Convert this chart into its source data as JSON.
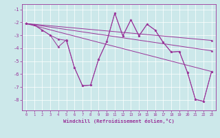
{
  "xlabel": "Windchill (Refroidissement éolien,°C)",
  "background_color": "#cce8ea",
  "line_color": "#993399",
  "xlim": [
    -0.5,
    23.5
  ],
  "ylim": [
    -8.8,
    -0.6
  ],
  "yticks": [
    -8,
    -7,
    -6,
    -5,
    -4,
    -3,
    -2,
    -1
  ],
  "xticks": [
    0,
    1,
    2,
    3,
    4,
    5,
    6,
    7,
    8,
    9,
    10,
    11,
    12,
    13,
    14,
    15,
    16,
    17,
    18,
    19,
    20,
    21,
    22,
    23
  ],
  "curves": [
    {
      "x": [
        0,
        1,
        2,
        3,
        4,
        5,
        6,
        7,
        8,
        9,
        10,
        11,
        12,
        13,
        14,
        15,
        16,
        17,
        18,
        19,
        20,
        21,
        22,
        23
      ],
      "y": [
        -2.1,
        -2.2,
        -2.6,
        -3.0,
        -3.3,
        -3.4,
        -5.5,
        -6.9,
        -6.85,
        -4.85,
        -3.5,
        -1.3,
        -3.05,
        -1.8,
        -3.05,
        -2.15,
        -2.6,
        -3.55,
        -4.3,
        -4.25,
        -5.85,
        -7.95,
        -8.1,
        -5.8
      ]
    },
    {
      "x": [
        0,
        1,
        2,
        3,
        4,
        5,
        6,
        7,
        8,
        9,
        10,
        11,
        12,
        13,
        14,
        15,
        16,
        17,
        18,
        19,
        20,
        21,
        22,
        23
      ],
      "y": [
        -2.1,
        -2.2,
        -2.6,
        -3.0,
        -3.9,
        -3.35,
        -5.5,
        -6.9,
        -6.85,
        -4.85,
        -3.5,
        -1.3,
        -3.05,
        -1.8,
        -3.05,
        -2.15,
        -2.6,
        -3.55,
        -4.3,
        -4.25,
        -5.85,
        -7.95,
        -8.1,
        -5.8
      ]
    },
    {
      "x": [
        0,
        23
      ],
      "y": [
        -2.1,
        -5.8
      ]
    },
    {
      "x": [
        0,
        23
      ],
      "y": [
        -2.1,
        -4.2
      ]
    },
    {
      "x": [
        0,
        23
      ],
      "y": [
        -2.1,
        -3.4
      ]
    }
  ]
}
